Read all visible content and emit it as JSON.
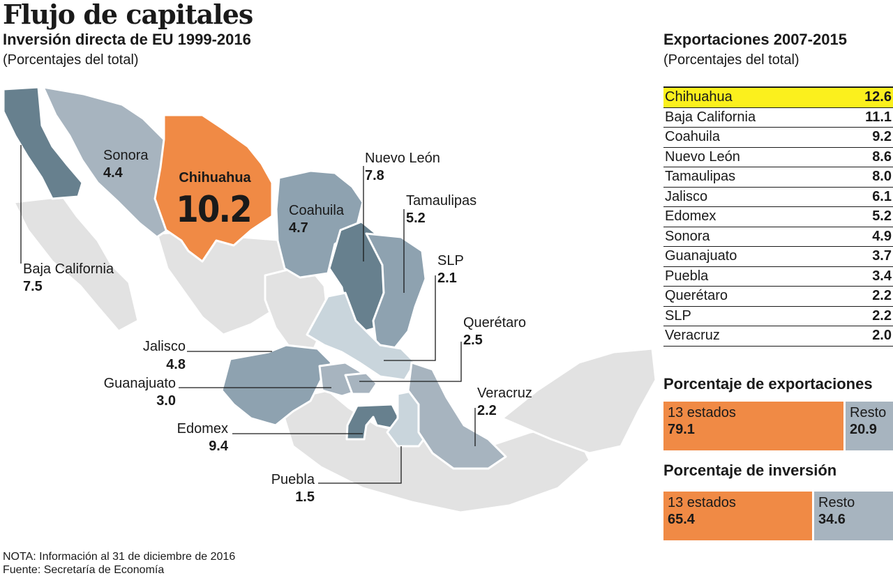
{
  "header": {
    "title": "Flujo de capitales",
    "subtitle": "Inversión directa de EU 1999-2016",
    "unit_note": "(Porcentajes del total)"
  },
  "colors": {
    "highlight_orange": "#f08a45",
    "dark_slate": "#67808e",
    "mid_slate": "#8ea2b0",
    "light_slate": "#a7b4bf",
    "pale_blue": "#c9d5dc",
    "light_grey": "#e2e2e2",
    "table_highlight": "#fbf01d"
  },
  "chart_data": [
    {
      "type": "choropleth-map",
      "title": "Inversión directa de EU 1999-2016",
      "unit": "(Porcentajes del total)",
      "highlight_label": "Chihuahua",
      "highlight_value": "10.2",
      "regions": [
        {
          "name": "Sonora",
          "value": "4.4"
        },
        {
          "name": "Nuevo León",
          "value": "7.8"
        },
        {
          "name": "Tamaulipas",
          "value": "5.2"
        },
        {
          "name": "Coahuila",
          "value": "4.7"
        },
        {
          "name": "SLP",
          "value": "2.1"
        },
        {
          "name": "Baja California",
          "value": "7.5"
        },
        {
          "name": "Querétaro",
          "value": "2.5"
        },
        {
          "name": "Jalisco",
          "value": "4.8"
        },
        {
          "name": "Guanajuato",
          "value": "3.0"
        },
        {
          "name": "Veracruz",
          "value": "2.2"
        },
        {
          "name": "Edomex",
          "value": "9.4"
        },
        {
          "name": "Puebla",
          "value": "1.5"
        }
      ]
    },
    {
      "type": "table",
      "title": "Exportaciones 2007-2015",
      "unit": "(Porcentajes del total)",
      "rows": [
        {
          "state": "Chihuahua",
          "value": "12.6"
        },
        {
          "state": "Baja California",
          "value": "11.1"
        },
        {
          "state": "Coahuila",
          "value": "9.2"
        },
        {
          "state": "Nuevo León",
          "value": "8.6"
        },
        {
          "state": "Tamaulipas",
          "value": "8.0"
        },
        {
          "state": "Jalisco",
          "value": "6.1"
        },
        {
          "state": "Edomex",
          "value": "5.2"
        },
        {
          "state": "Sonora",
          "value": "4.9"
        },
        {
          "state": "Guanajuato",
          "value": "3.7"
        },
        {
          "state": "Puebla",
          "value": "3.4"
        },
        {
          "state": "Querétaro",
          "value": "2.2"
        },
        {
          "state": "SLP",
          "value": "2.2"
        },
        {
          "state": "Veracruz",
          "value": "2.0"
        }
      ]
    },
    {
      "type": "bar",
      "title": "Porcentaje de exportaciones",
      "segments": [
        {
          "label": "13 estados",
          "value": 79.1,
          "value_text": "79.1"
        },
        {
          "label": "Resto",
          "value": 20.9,
          "value_text": "20.9"
        }
      ]
    },
    {
      "type": "bar",
      "title": "Porcentaje de inversión",
      "segments": [
        {
          "label": "13 estados",
          "value": 65.4,
          "value_text": "65.4"
        },
        {
          "label": "Resto",
          "value": 34.6,
          "value_text": "34.6"
        }
      ]
    }
  ],
  "footer": {
    "note": "NOTA: Información al 31 de diciembre de 2016",
    "source": "Fuente: Secretaría de Economía"
  }
}
